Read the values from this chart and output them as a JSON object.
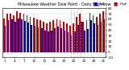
{
  "title": "Milwaukee Weather Dew Point - Daily High/Low",
  "high_values": [
    62,
    70,
    71,
    68,
    75,
    72,
    70,
    68,
    65,
    63,
    60,
    58,
    55,
    52,
    55,
    58,
    60,
    58,
    55,
    52,
    48,
    52,
    65,
    70,
    55,
    58,
    72,
    68,
    65,
    70,
    75
  ],
  "low_values": [
    48,
    58,
    60,
    55,
    62,
    60,
    57,
    54,
    50,
    48,
    45,
    43,
    40,
    38,
    40,
    43,
    47,
    44,
    40,
    36,
    32,
    38,
    50,
    55,
    40,
    42,
    58,
    53,
    50,
    55,
    60
  ],
  "high_color": "#cc0000",
  "low_color": "#0000cc",
  "background_color": "#ffffff",
  "ylim": [
    -10,
    80
  ],
  "ytick_values": [
    -10,
    0,
    10,
    20,
    30,
    40,
    50,
    60,
    70,
    80
  ],
  "ytick_labels": [
    "-10",
    "0",
    "10",
    "20",
    "30",
    "40",
    "50",
    "60",
    "70",
    "80"
  ],
  "dashed_cols": [
    20,
    21,
    22,
    23
  ],
  "legend_labels": [
    "High",
    "Low"
  ],
  "legend_colors": [
    "#cc0000",
    "#0000cc"
  ]
}
